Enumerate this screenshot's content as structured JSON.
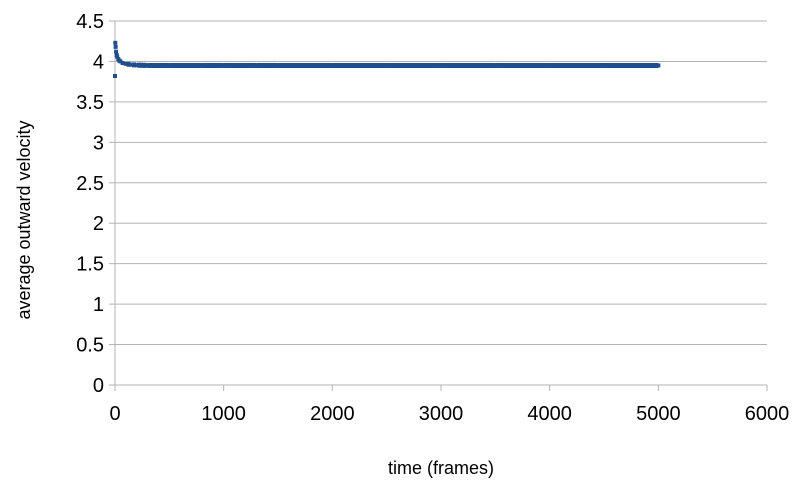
{
  "chart_data": {
    "type": "scatter",
    "title": "",
    "xlabel": "time (frames)",
    "ylabel": "average outward velocity",
    "xlim": [
      0,
      6000
    ],
    "ylim": [
      0,
      4.5
    ],
    "xticks": [
      0,
      1000,
      2000,
      3000,
      4000,
      5000,
      6000
    ],
    "yticks": [
      0,
      0.5,
      1,
      1.5,
      2,
      2.5,
      3,
      3.5,
      4,
      4.5
    ],
    "x_tick_labels": [
      "0",
      "1000",
      "2000",
      "3000",
      "4000",
      "5000",
      "6000"
    ],
    "y_tick_labels": [
      "0",
      "0.5",
      "1",
      "1.5",
      "2",
      "2.5",
      "3",
      "3.5",
      "4",
      "4.5"
    ],
    "grid": {
      "horizontal": true,
      "vertical": false
    },
    "legend": "none",
    "series": [
      {
        "color": "#1f4e8c",
        "points": [
          [
            0,
            3.82
          ],
          [
            3,
            4.23
          ],
          [
            6,
            4.18
          ],
          [
            10,
            4.12
          ],
          [
            15,
            4.08
          ],
          [
            20,
            4.06
          ],
          [
            30,
            4.03
          ],
          [
            40,
            4.01
          ],
          [
            50,
            4.0
          ],
          [
            70,
            3.98
          ],
          [
            100,
            3.97
          ],
          [
            150,
            3.96
          ],
          [
            200,
            3.955
          ],
          [
            300,
            3.95
          ],
          [
            500,
            3.95
          ],
          [
            800,
            3.95
          ],
          [
            1000,
            3.95
          ],
          [
            1300,
            3.95
          ],
          [
            1500,
            3.95
          ],
          [
            2000,
            3.95
          ],
          [
            2500,
            3.95
          ],
          [
            3000,
            3.95
          ],
          [
            3500,
            3.95
          ],
          [
            4000,
            3.95
          ],
          [
            4500,
            3.95
          ],
          [
            5000,
            3.95
          ]
        ]
      }
    ]
  }
}
